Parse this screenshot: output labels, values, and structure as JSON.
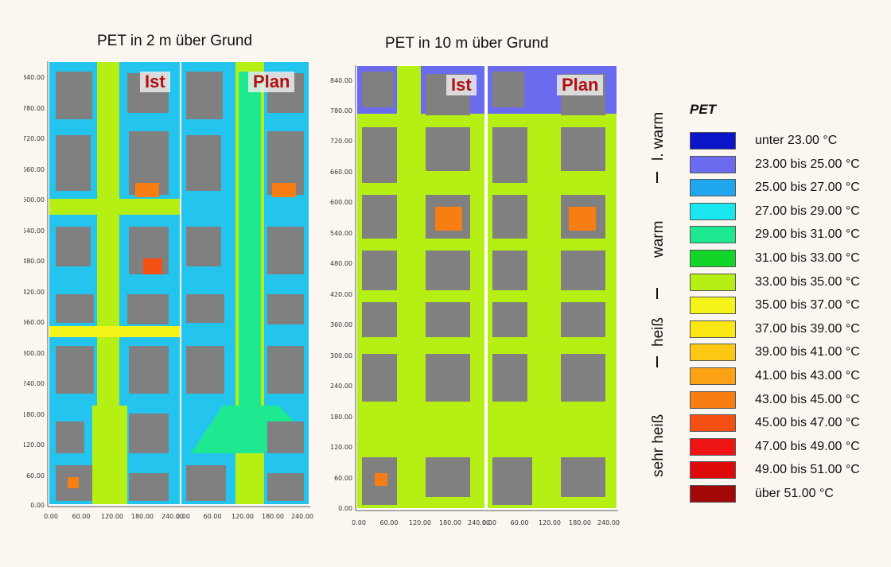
{
  "groups": [
    {
      "title": "PET in 2 m über Grund",
      "panels": [
        "Ist",
        "Plan"
      ]
    },
    {
      "title": "PET in 10 m über Grund",
      "panels": [
        "Ist",
        "Plan"
      ]
    }
  ],
  "axes": {
    "y_ticks": [
      "840.00",
      "780.00",
      "720.00",
      "660.00",
      "600.00",
      "540.00",
      "480.00",
      "420.00",
      "360.00",
      "300.00",
      "240.00",
      "180.00",
      "120.00",
      "60.00",
      "0.00"
    ],
    "x_ticks_first": [
      "0.00",
      "60.00",
      "120.00",
      "180.00",
      "240.00"
    ],
    "x_ticks_second": [
      "0.00",
      "60.00",
      "120.00",
      "180.00",
      "240.00"
    ]
  },
  "legend": {
    "title": "PET",
    "items": [
      {
        "label": "unter 23.00 °C",
        "color": "#0a14c8"
      },
      {
        "label": "23.00 bis 25.00 °C",
        "color": "#6b6bf0"
      },
      {
        "label": "25.00 bis 27.00 °C",
        "color": "#1fa6ee"
      },
      {
        "label": "27.00 bis 29.00 °C",
        "color": "#19e6ee"
      },
      {
        "label": "29.00 bis 31.00 °C",
        "color": "#1ee890"
      },
      {
        "label": "31.00 bis 33.00 °C",
        "color": "#12d52a"
      },
      {
        "label": "33.00 bis 35.00 °C",
        "color": "#b6ef14"
      },
      {
        "label": "35.00 bis 37.00 °C",
        "color": "#f4f41a"
      },
      {
        "label": "37.00 bis 39.00 °C",
        "color": "#fce614"
      },
      {
        "label": "39.00 bis 41.00 °C",
        "color": "#fcc814"
      },
      {
        "label": "41.00 bis 43.00 °C",
        "color": "#fca214"
      },
      {
        "label": "43.00 bis 45.00 °C",
        "color": "#f87e14"
      },
      {
        "label": "45.00 bis 47.00 °C",
        "color": "#f45014"
      },
      {
        "label": "47.00 bis 49.00 °C",
        "color": "#ef1414"
      },
      {
        "label": "49.00 bis 51.00 °C",
        "color": "#dc0a0a"
      },
      {
        "label": "über 51.00 °C",
        "color": "#a30808"
      }
    ],
    "categories": {
      "l_warm": "l. warm",
      "warm": "warm",
      "heiss": "heiß",
      "sehr_heiss": "sehr heiß"
    }
  },
  "colors": {
    "building": "#808080",
    "road": "#b6ef14",
    "label_red": "#b01010"
  }
}
